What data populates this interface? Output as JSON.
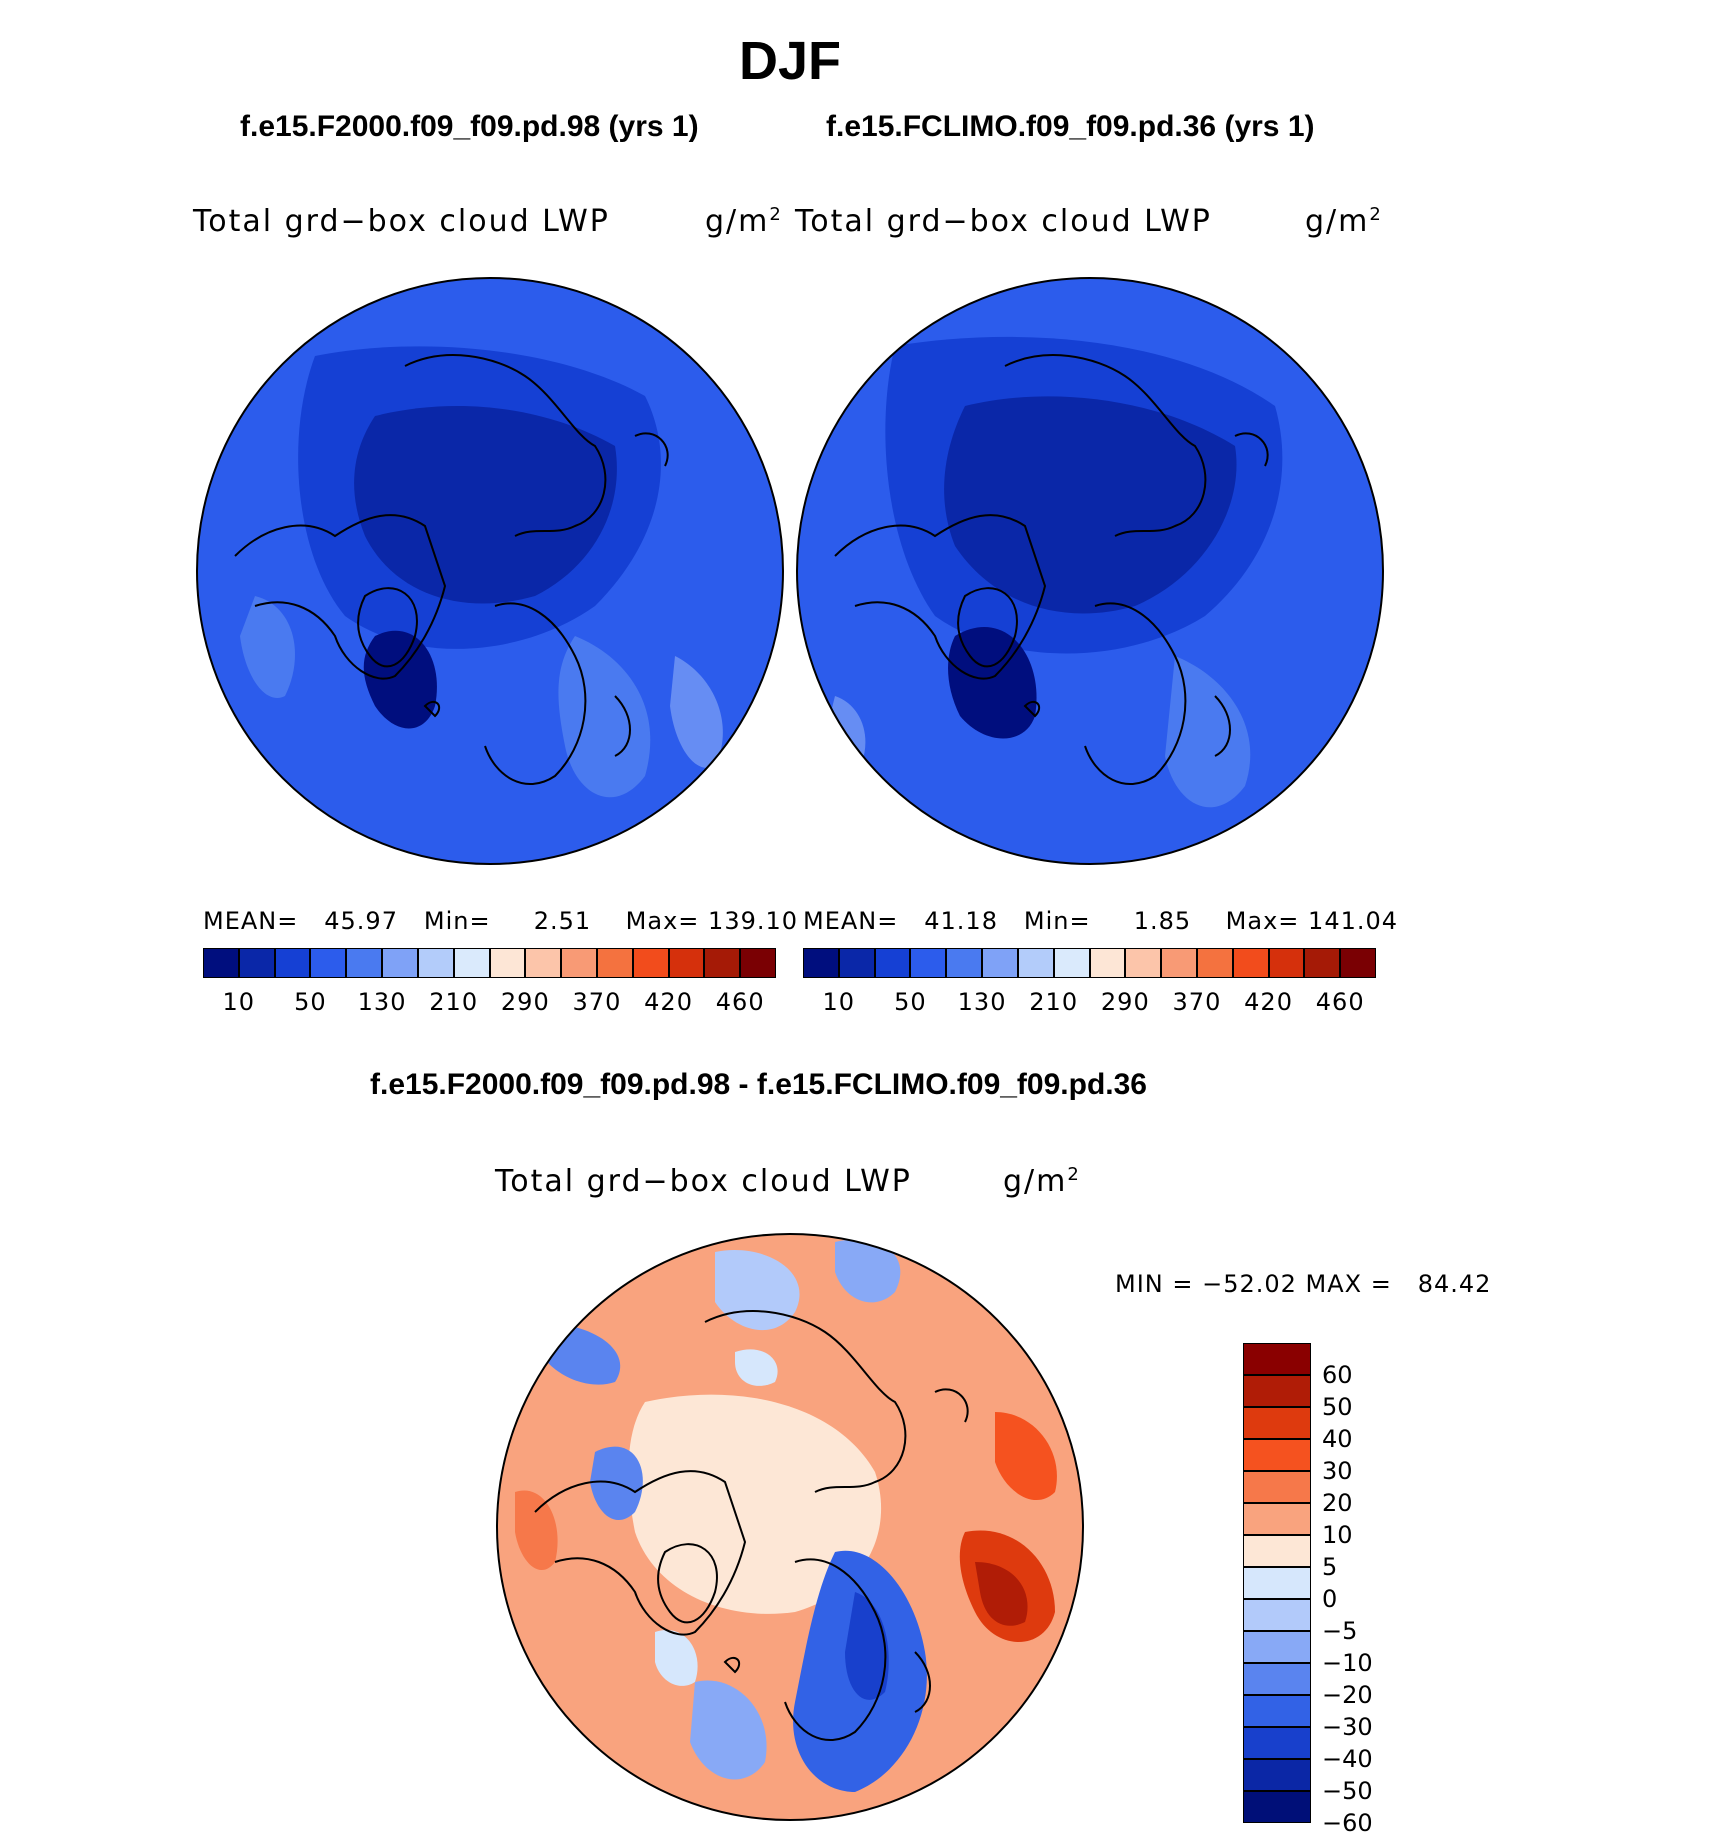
{
  "figure": {
    "title": "DJF",
    "panel_left": {
      "case": "f.e15.F2000.f09_f09.pd.98 (yrs 1)",
      "variable": "Total grd−box cloud LWP",
      "units": "g/m",
      "units_sup": "2",
      "mean_label": "MEAN=",
      "mean": "45.97",
      "min_label": "Min=",
      "min": "2.51",
      "max_label": "Max=",
      "max": "139.10"
    },
    "panel_right": {
      "case": "f.e15.FCLIMO.f09_f09.pd.36 (yrs 1)",
      "variable": "Total grd−box cloud LWP",
      "units": "g/m",
      "units_sup": "2",
      "mean_label": "MEAN=",
      "mean": "41.18",
      "min_label": "Min=",
      "min": "1.85",
      "max_label": "Max=",
      "max": "141.04"
    },
    "colorbar_abs": {
      "colors": [
        "#000e7e",
        "#0a27a8",
        "#1540d4",
        "#2c5cec",
        "#4a7af0",
        "#7fa2f7",
        "#b3ccfa",
        "#daeafc",
        "#fde6d6",
        "#fcc5aa",
        "#f89a75",
        "#f4723f",
        "#f24c1c",
        "#d5300c",
        "#a51a06",
        "#7a0003"
      ],
      "labels": [
        "10",
        "50",
        "130",
        "210",
        "290",
        "370",
        "420",
        "460"
      ]
    },
    "panel_diff": {
      "case": "f.e15.F2000.f09_f09.pd.98 - f.e15.FCLIMO.f09_f09.pd.36",
      "variable": "Total grd−box cloud LWP",
      "units": "g/m",
      "units_sup": "2",
      "minmax": "MIN = −52.02 MAX =   84.42"
    },
    "colorbar_diff": {
      "colors": [
        "#8a0000",
        "#b01c06",
        "#de3a0e",
        "#f5521f",
        "#f6784a",
        "#f9a37e",
        "#fde7d6",
        "#d6e7fc",
        "#b2cafa",
        "#88a9f6",
        "#5a84ef",
        "#3262e6",
        "#1840cc",
        "#0b27a6",
        "#000f78"
      ],
      "labels": [
        "60",
        "50",
        "40",
        "30",
        "20",
        "10",
        "5",
        "0",
        "−5",
        "−10",
        "−20",
        "−30",
        "−40",
        "−50",
        "−60"
      ]
    }
  }
}
